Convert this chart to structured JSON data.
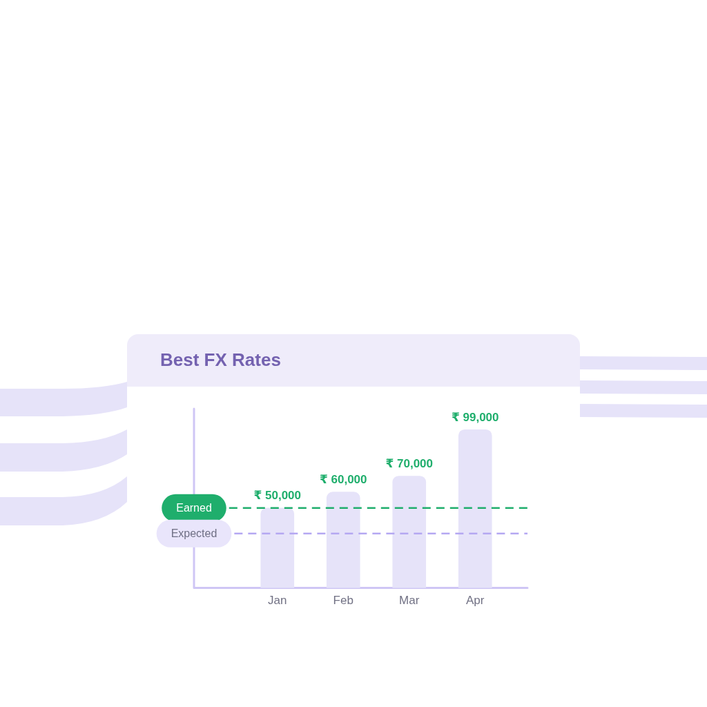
{
  "chart_data": {
    "type": "bar",
    "title": "Best FX Rates",
    "categories": [
      "Jan",
      "Feb",
      "Mar",
      "Apr"
    ],
    "values": [
      50000,
      60000,
      70000,
      99000
    ],
    "color": "#e6e3f9",
    "value_labels": [
      "₹ 50,000",
      "₹ 60,000",
      "₹ 70,000",
      "₹ 99,000"
    ],
    "tick_labels": "x",
    "ref_lines": [
      {
        "axis": "y",
        "value": 50000,
        "label": "Earned",
        "color": "#1fae6c",
        "line_style": "dashed"
      },
      {
        "axis": "y",
        "value": 34000,
        "label": "Expected",
        "color": "#b5a8f2",
        "line_style": "dashed"
      }
    ]
  }
}
